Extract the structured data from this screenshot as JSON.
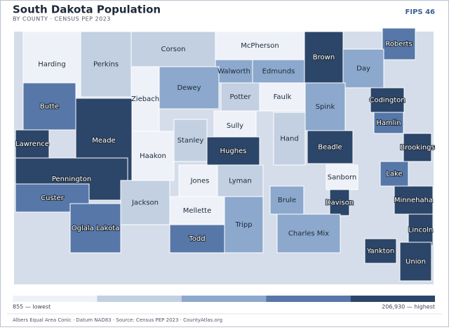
{
  "header": {
    "title": "South Dakota Population",
    "subtitle": "BY COUNTY · CENSUS PEP 2023",
    "badge": "FIPS 46"
  },
  "legend": {
    "colors": [
      "#eef2f8",
      "#c2d0e2",
      "#8ca8cc",
      "#5677a8",
      "#2c4669"
    ],
    "low": "855 — lowest",
    "high": "206,930 — highest"
  },
  "footer": "Albers Equal Area Conic · Datum NAD83 · Source: Census PEP 2023 · CountyAtlas.org",
  "counties": [
    {
      "name": "Harding",
      "class": 0
    },
    {
      "name": "Perkins",
      "class": 1
    },
    {
      "name": "Corson",
      "class": 1
    },
    {
      "name": "McPherson",
      "class": 0
    },
    {
      "name": "Brown",
      "class": 4
    },
    {
      "name": "Roberts",
      "class": 3
    },
    {
      "name": "Walworth",
      "class": 2
    },
    {
      "name": "Edmunds",
      "class": 2
    },
    {
      "name": "Day",
      "class": 2
    },
    {
      "name": "Ziebach",
      "class": 0
    },
    {
      "name": "Dewey",
      "class": 2
    },
    {
      "name": "Potter",
      "class": 1
    },
    {
      "name": "Faulk",
      "class": 0
    },
    {
      "name": "Butte",
      "class": 3
    },
    {
      "name": "Meade",
      "class": 4
    },
    {
      "name": "Spink",
      "class": 2
    },
    {
      "name": "Codington",
      "class": 4
    },
    {
      "name": "Sully",
      "class": 0
    },
    {
      "name": "Hamlin",
      "class": 3
    },
    {
      "name": "Stanley",
      "class": 1
    },
    {
      "name": "Hand",
      "class": 1
    },
    {
      "name": "Beadle",
      "class": 4
    },
    {
      "name": "Brookings",
      "class": 4
    },
    {
      "name": "Haakon",
      "class": 0
    },
    {
      "name": "Pennington",
      "class": 4
    },
    {
      "name": "Lawrence",
      "class": 4
    },
    {
      "name": "Hughes",
      "class": 4
    },
    {
      "name": "Jones",
      "class": 0
    },
    {
      "name": "Lyman",
      "class": 1
    },
    {
      "name": "Sanborn",
      "class": 0
    },
    {
      "name": "Lake",
      "class": 3
    },
    {
      "name": "Custer",
      "class": 3
    },
    {
      "name": "Jackson",
      "class": 1
    },
    {
      "name": "Mellette",
      "class": 0
    },
    {
      "name": "Brule",
      "class": 2
    },
    {
      "name": "Davison",
      "class": 4
    },
    {
      "name": "Minnehaha",
      "class": 4
    },
    {
      "name": "Oglala Lakota",
      "class": 3
    },
    {
      "name": "Tripp",
      "class": 2
    },
    {
      "name": "Todd",
      "class": 3
    },
    {
      "name": "Charles Mix",
      "class": 2
    },
    {
      "name": "Lincoln",
      "class": 4
    },
    {
      "name": "Yankton",
      "class": 4
    },
    {
      "name": "Union",
      "class": 4
    }
  ]
}
